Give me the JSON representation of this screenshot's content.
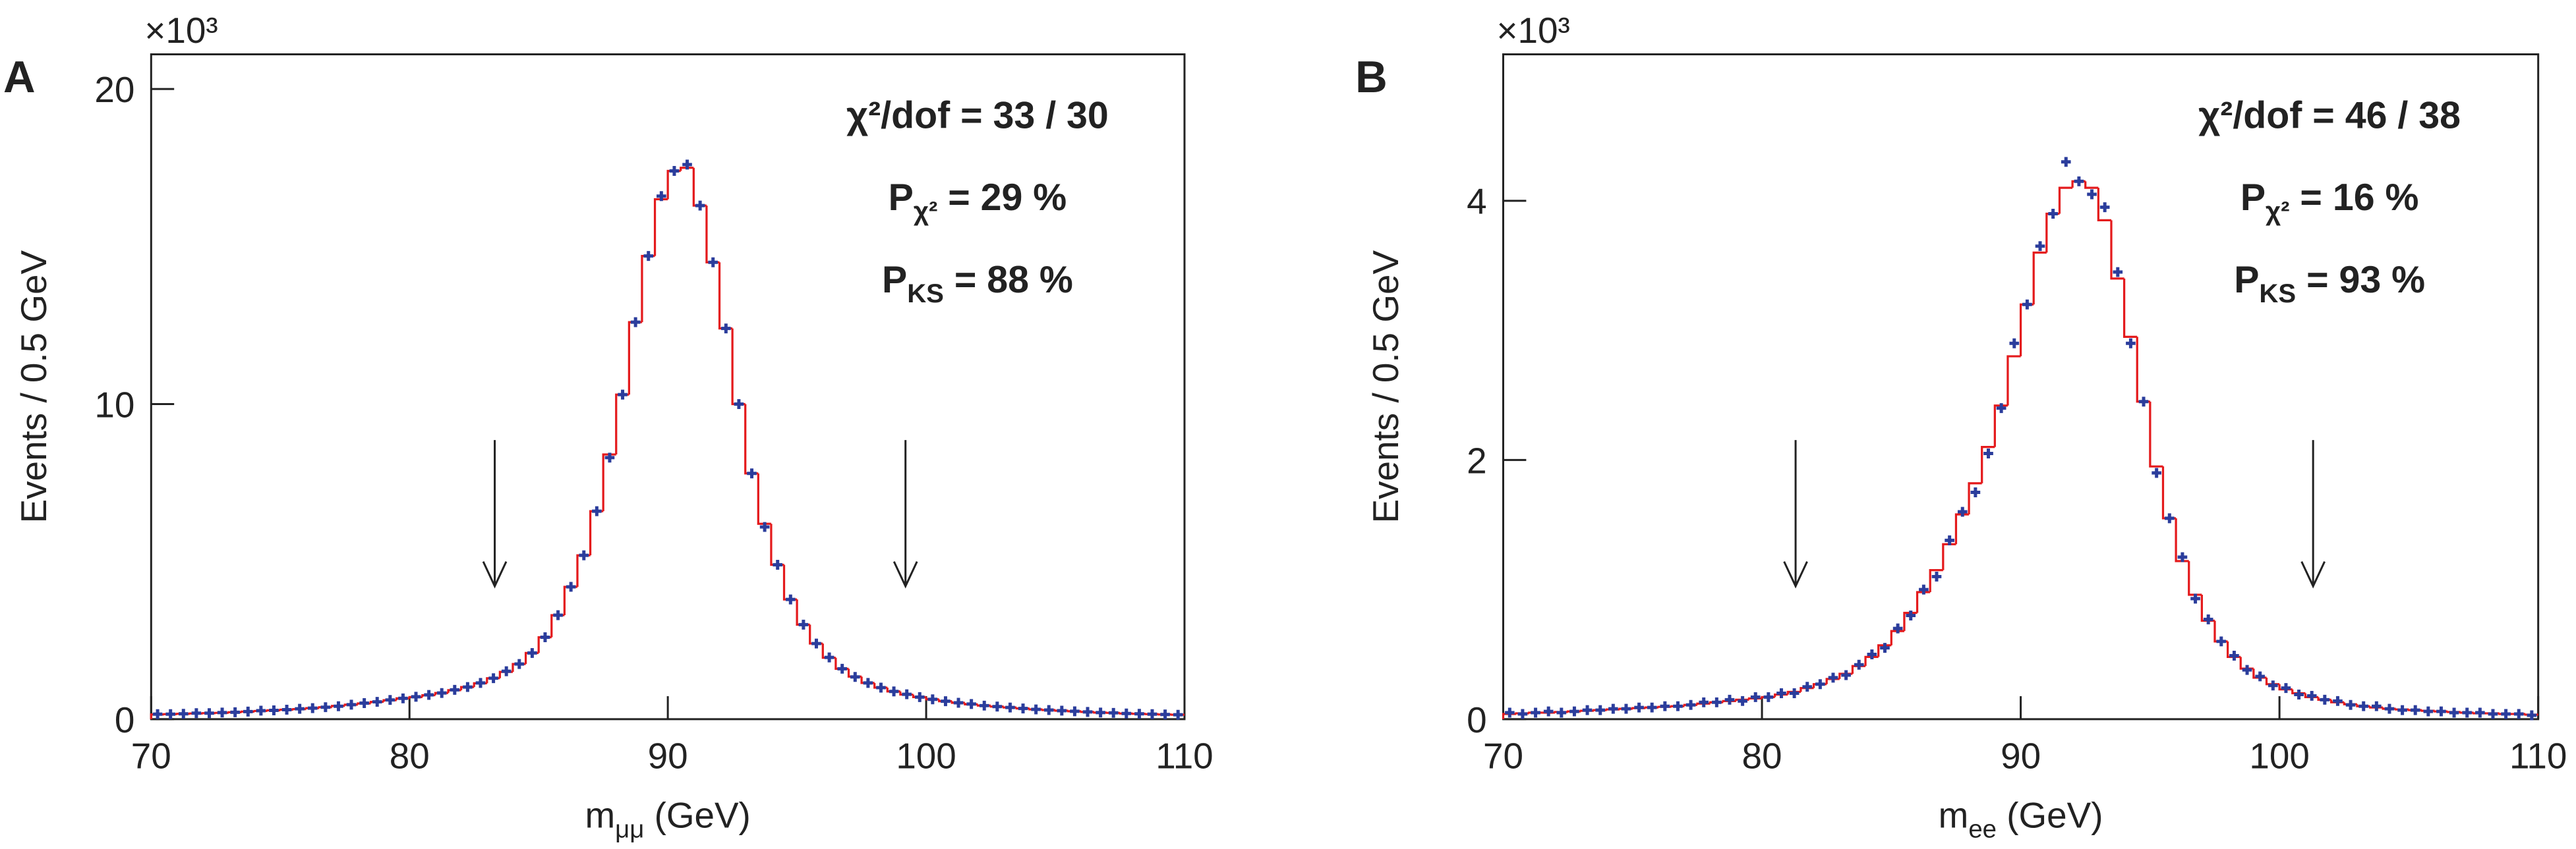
{
  "chart_data": [
    {
      "type": "histogram",
      "panel": "A",
      "y_multiplier": "×10³",
      "y_label": "Events / 0.5 GeV",
      "x_label": {
        "main": "m",
        "sub": "μμ",
        "rest": " (GeV)"
      },
      "annotations": [
        {
          "main": "χ²/dof = 33 / 30"
        },
        {
          "main": "P",
          "sub": "χ²",
          "rest": " = 29 %"
        },
        {
          "main": "P",
          "sub": "KS",
          "rest": " = 88 %"
        }
      ],
      "xlim": [
        70,
        110
      ],
      "xticks": [
        70,
        80,
        90,
        100,
        110
      ],
      "ylim": [
        0,
        21.1
      ],
      "yticks": [
        0,
        10,
        20
      ],
      "cuts": [
        83.3,
        99.2
      ],
      "bins": [
        70,
        70.5,
        71,
        71.5,
        72,
        72.5,
        73,
        73.5,
        74,
        74.5,
        75,
        75.5,
        76,
        76.5,
        77,
        77.5,
        78,
        78.5,
        79,
        79.5,
        80,
        80.5,
        81,
        81.5,
        82,
        82.5,
        83,
        83.5,
        84,
        84.5,
        85,
        85.5,
        86,
        86.5,
        87,
        87.5,
        88,
        88.5,
        89,
        89.5,
        90,
        90.5,
        91,
        91.5,
        92,
        92.5,
        93,
        93.5,
        94,
        94.5,
        95,
        95.5,
        96,
        96.5,
        97,
        97.5,
        98,
        98.5,
        99,
        99.5,
        100,
        100.5,
        101,
        101.5,
        102,
        102.5,
        103,
        103.5,
        104,
        104.5,
        105,
        105.5,
        106,
        106.5,
        107,
        107.5,
        108,
        108.5,
        109,
        109.5,
        110
      ],
      "series": [
        {
          "style": "step",
          "color": "#e41a1c",
          "values": [
            0.15,
            0.16,
            0.17,
            0.18,
            0.19,
            0.2,
            0.22,
            0.24,
            0.26,
            0.28,
            0.3,
            0.32,
            0.35,
            0.38,
            0.42,
            0.46,
            0.5,
            0.55,
            0.6,
            0.66,
            0.7,
            0.76,
            0.83,
            0.92,
            1.02,
            1.14,
            1.3,
            1.5,
            1.75,
            2.1,
            2.6,
            3.3,
            4.2,
            5.2,
            6.6,
            8.4,
            10.3,
            12.6,
            14.7,
            16.5,
            17.4,
            17.5,
            16.3,
            14.5,
            12.4,
            10.0,
            7.8,
            6.2,
            4.9,
            3.8,
            3.0,
            2.4,
            1.95,
            1.6,
            1.35,
            1.15,
            1.0,
            0.88,
            0.78,
            0.7,
            0.63,
            0.57,
            0.52,
            0.47,
            0.43,
            0.4,
            0.37,
            0.34,
            0.31,
            0.29,
            0.27,
            0.25,
            0.23,
            0.21,
            0.2,
            0.18,
            0.17,
            0.16,
            0.15,
            0.14
          ]
        },
        {
          "style": "points",
          "color": "#2b3d9c",
          "values": [
            0.16,
            0.16,
            0.17,
            0.19,
            0.19,
            0.21,
            0.22,
            0.24,
            0.27,
            0.28,
            0.3,
            0.33,
            0.35,
            0.38,
            0.41,
            0.46,
            0.51,
            0.55,
            0.61,
            0.66,
            0.71,
            0.77,
            0.83,
            0.93,
            1.02,
            1.15,
            1.3,
            1.52,
            1.75,
            2.1,
            2.6,
            3.3,
            4.2,
            5.2,
            6.6,
            8.3,
            10.3,
            12.6,
            14.7,
            16.6,
            17.4,
            17.6,
            16.3,
            14.5,
            12.4,
            10.0,
            7.8,
            6.1,
            4.9,
            3.8,
            3.0,
            2.4,
            1.96,
            1.6,
            1.34,
            1.15,
            1.0,
            0.88,
            0.79,
            0.7,
            0.63,
            0.57,
            0.52,
            0.48,
            0.43,
            0.4,
            0.37,
            0.34,
            0.31,
            0.29,
            0.27,
            0.25,
            0.23,
            0.21,
            0.2,
            0.18,
            0.17,
            0.16,
            0.15,
            0.14
          ]
        }
      ]
    },
    {
      "type": "histogram",
      "panel": "B",
      "y_multiplier": "×10³",
      "y_label": "Events / 0.5 GeV",
      "x_label": {
        "main": "m",
        "sub": "ee",
        "rest": " (GeV)"
      },
      "annotations": [
        {
          "main": "χ²/dof = 46 / 38"
        },
        {
          "main": "P",
          "sub": "χ²",
          "rest": " = 16 %"
        },
        {
          "main": "P",
          "sub": "KS",
          "rest": " = 93 %"
        }
      ],
      "xlim": [
        70,
        110
      ],
      "xticks": [
        70,
        80,
        90,
        100,
        110
      ],
      "ylim": [
        0,
        5.13
      ],
      "yticks": [
        0,
        2,
        4
      ],
      "cuts": [
        81.3,
        101.3
      ],
      "bins": [
        70,
        70.5,
        71,
        71.5,
        72,
        72.5,
        73,
        73.5,
        74,
        74.5,
        75,
        75.5,
        76,
        76.5,
        77,
        77.5,
        78,
        78.5,
        79,
        79.5,
        80,
        80.5,
        81,
        81.5,
        82,
        82.5,
        83,
        83.5,
        84,
        84.5,
        85,
        85.5,
        86,
        86.5,
        87,
        87.5,
        88,
        88.5,
        89,
        89.5,
        90,
        90.5,
        91,
        91.5,
        92,
        92.5,
        93,
        93.5,
        94,
        94.5,
        95,
        95.5,
        96,
        96.5,
        97,
        97.5,
        98,
        98.5,
        99,
        99.5,
        100,
        100.5,
        101,
        101.5,
        102,
        102.5,
        103,
        103.5,
        104,
        104.5,
        105,
        105.5,
        106,
        106.5,
        107,
        107.5,
        108,
        108.5,
        109,
        109.5,
        110
      ],
      "series": [
        {
          "style": "step",
          "color": "#e41a1c",
          "values": [
            0.04,
            0.045,
            0.05,
            0.05,
            0.055,
            0.06,
            0.065,
            0.07,
            0.075,
            0.08,
            0.085,
            0.09,
            0.095,
            0.1,
            0.11,
            0.12,
            0.13,
            0.14,
            0.15,
            0.16,
            0.17,
            0.19,
            0.21,
            0.24,
            0.27,
            0.31,
            0.35,
            0.41,
            0.48,
            0.57,
            0.68,
            0.82,
            0.98,
            1.15,
            1.35,
            1.58,
            1.82,
            2.1,
            2.42,
            2.8,
            3.2,
            3.6,
            3.9,
            4.1,
            4.15,
            4.1,
            3.85,
            3.4,
            2.95,
            2.45,
            1.95,
            1.55,
            1.22,
            0.96,
            0.76,
            0.6,
            0.48,
            0.39,
            0.32,
            0.27,
            0.23,
            0.2,
            0.17,
            0.15,
            0.13,
            0.115,
            0.1,
            0.09,
            0.08,
            0.075,
            0.07,
            0.065,
            0.06,
            0.055,
            0.05,
            0.045,
            0.045,
            0.04,
            0.04,
            0.035
          ]
        },
        {
          "style": "points",
          "color": "#2b3d9c",
          "values": [
            0.05,
            0.04,
            0.05,
            0.06,
            0.05,
            0.06,
            0.07,
            0.07,
            0.08,
            0.08,
            0.09,
            0.09,
            0.1,
            0.1,
            0.11,
            0.13,
            0.13,
            0.15,
            0.14,
            0.17,
            0.17,
            0.2,
            0.2,
            0.25,
            0.27,
            0.32,
            0.34,
            0.42,
            0.5,
            0.55,
            0.7,
            0.8,
            1.0,
            1.1,
            1.38,
            1.6,
            1.75,
            2.05,
            2.4,
            2.9,
            3.2,
            3.65,
            3.9,
            4.3,
            4.15,
            4.05,
            3.95,
            3.45,
            2.9,
            2.45,
            1.9,
            1.55,
            1.25,
            0.93,
            0.77,
            0.6,
            0.49,
            0.38,
            0.33,
            0.26,
            0.24,
            0.19,
            0.18,
            0.15,
            0.14,
            0.11,
            0.1,
            0.1,
            0.08,
            0.07,
            0.07,
            0.06,
            0.06,
            0.05,
            0.05,
            0.05,
            0.04,
            0.04,
            0.04,
            0.03
          ]
        }
      ]
    }
  ]
}
